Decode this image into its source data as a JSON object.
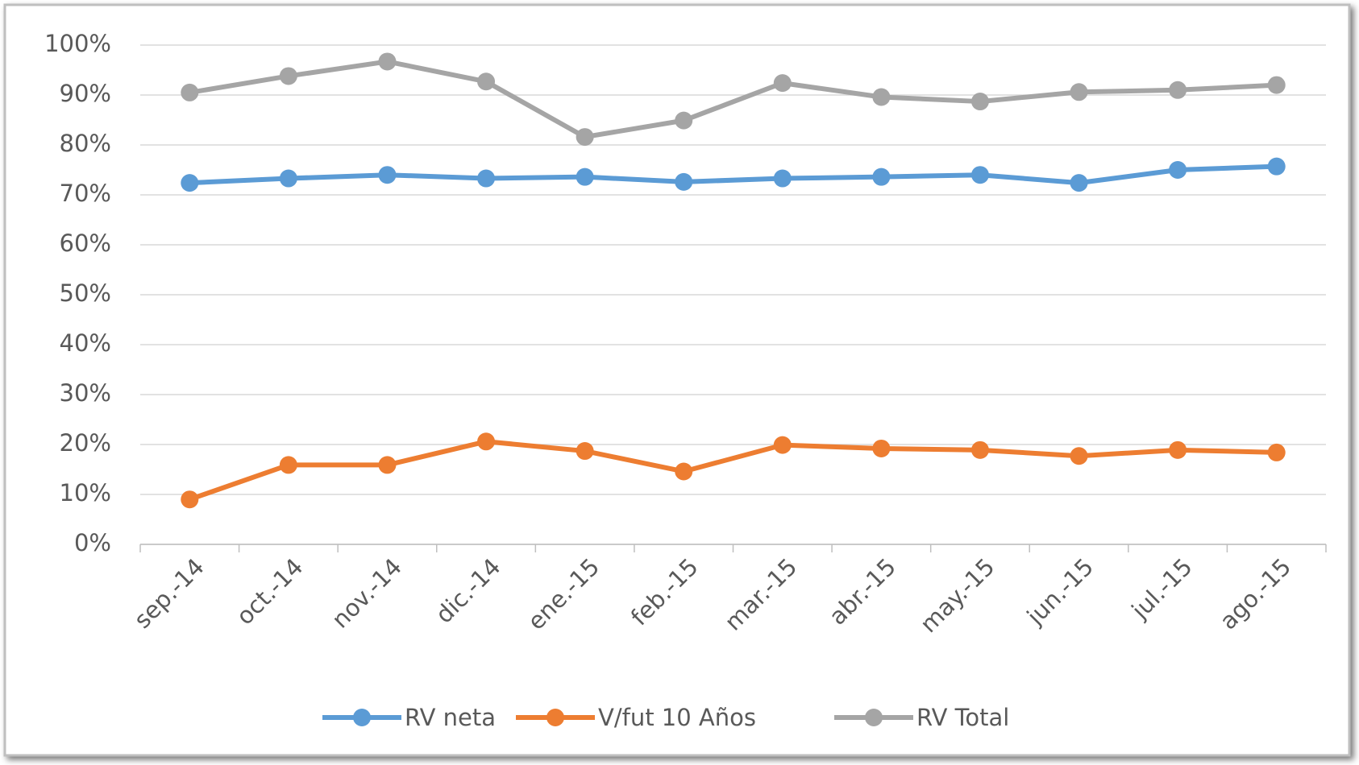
{
  "chart_data": {
    "type": "line",
    "categories": [
      "sep.-14",
      "oct.-14",
      "nov.-14",
      "dic.-14",
      "ene.-15",
      "feb.-15",
      "mar.-15",
      "abr.-15",
      "may.-15",
      "jun.-15",
      "jul.-15",
      "ago.-15"
    ],
    "series": [
      {
        "name": "RV neta",
        "color": "#5b9bd5",
        "values": [
          72.4,
          73.3,
          74,
          73.3,
          73.6,
          72.6,
          73.3,
          73.6,
          74,
          72.4,
          75,
          75.7
        ]
      },
      {
        "name": "V/fut 10 Años",
        "color": "#ed7d31",
        "values": [
          9,
          15.9,
          15.9,
          20.6,
          18.7,
          14.6,
          19.9,
          19.2,
          18.9,
          17.7,
          18.9,
          18.4
        ]
      },
      {
        "name": "RV Total",
        "color": "#a5a5a5",
        "values": [
          90.5,
          93.8,
          96.7,
          92.7,
          81.6,
          84.9,
          92.4,
          89.6,
          88.7,
          90.6,
          91,
          92
        ]
      }
    ],
    "ylim": [
      0,
      100
    ],
    "yticks": [
      {
        "value": 0,
        "label": "0%"
      },
      {
        "value": 10,
        "label": "10%"
      },
      {
        "value": 20,
        "label": "20%"
      },
      {
        "value": 30,
        "label": "30%"
      },
      {
        "value": 40,
        "label": "40%"
      },
      {
        "value": 50,
        "label": "50%"
      },
      {
        "value": 60,
        "label": "60%"
      },
      {
        "value": 70,
        "label": "70%"
      },
      {
        "value": 80,
        "label": "80%"
      },
      {
        "value": 90,
        "label": "90%"
      },
      {
        "value": 100,
        "label": "100%"
      }
    ],
    "grid": true,
    "legend": "bottom"
  }
}
